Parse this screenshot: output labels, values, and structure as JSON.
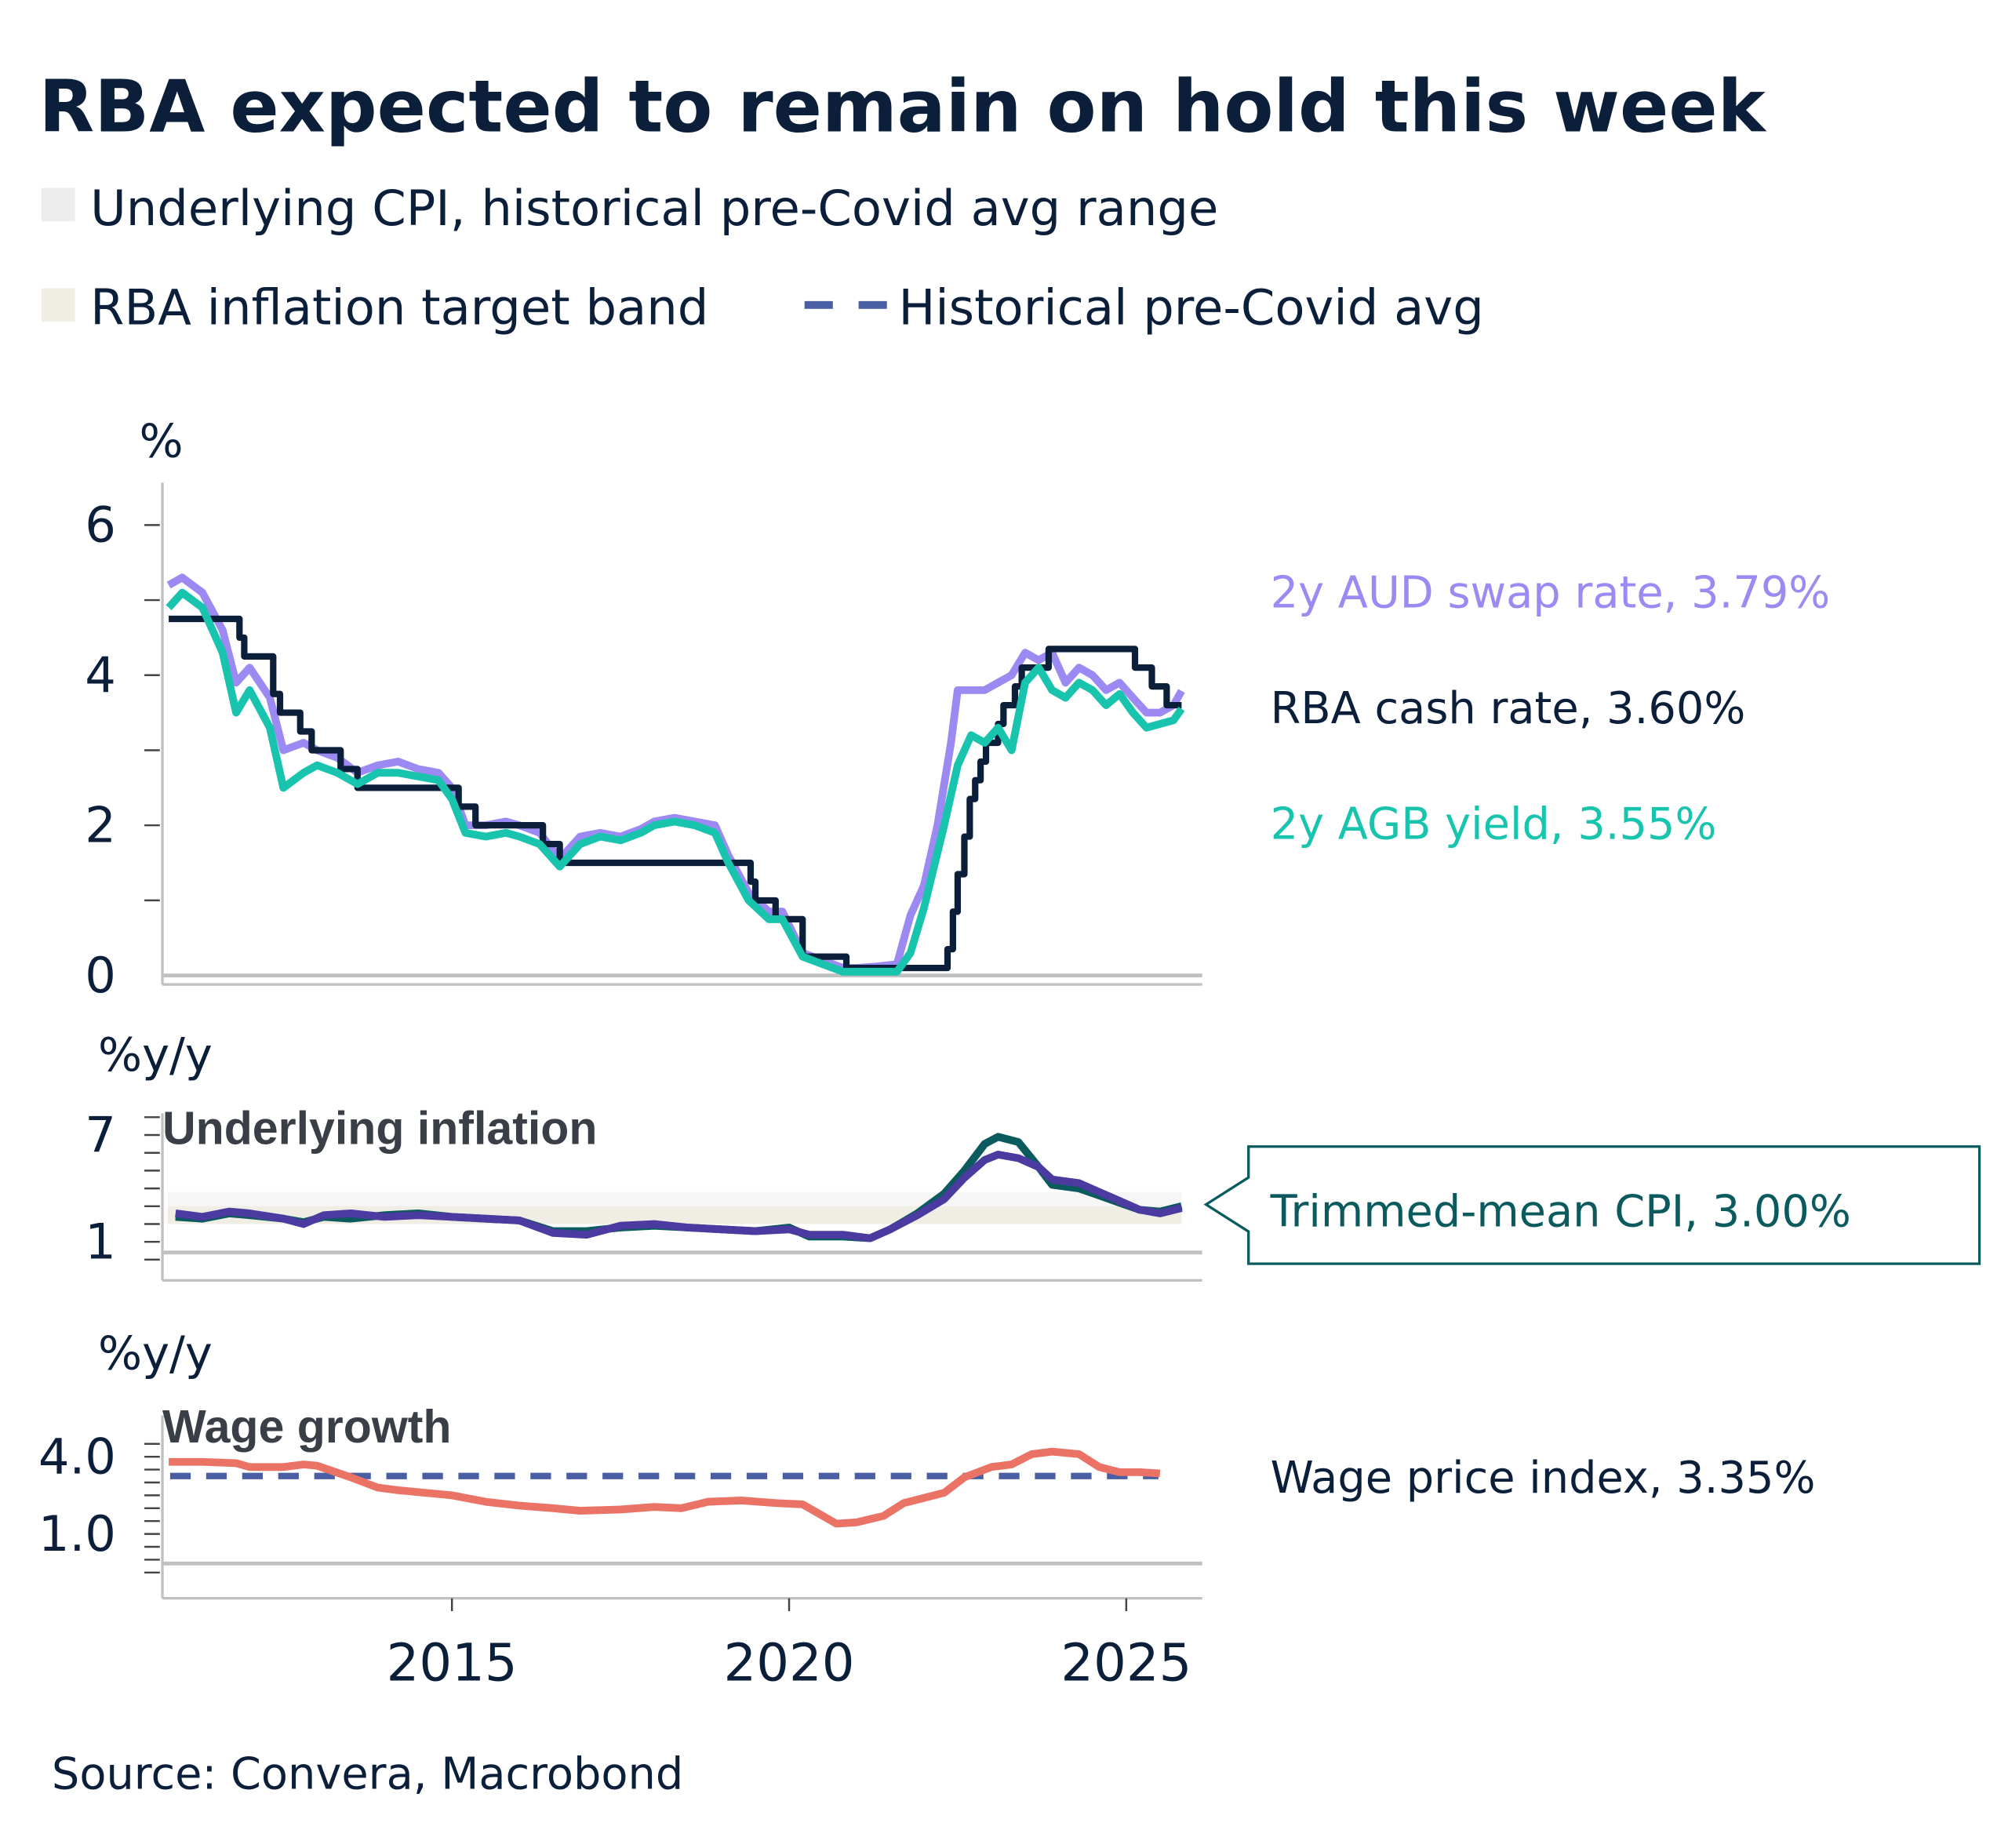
{
  "title": "RBA expected to remain on hold this week",
  "legend": [
    {
      "label": "Underlying CPI, historical pre-Covid avg range",
      "color": "#ececec",
      "kind": "box"
    },
    {
      "label": "RBA inflation target band",
      "color": "#efede4",
      "kind": "box"
    },
    {
      "label": "Historical pre-Covid avg",
      "color": "#4a5fa3",
      "kind": "dash"
    }
  ],
  "source": "Source: Convera, Macrobond",
  "colors": {
    "swap": "#9c8af2",
    "cash": "#0b1f3a",
    "agb": "#18c4ad",
    "tm": "#0b5a5e",
    "inf2": "#4b3aa0",
    "wpi": "#ea7366",
    "avg": "#4a5fa3",
    "axis": "#c0c0c0"
  },
  "chart_data": [
    {
      "type": "line",
      "ylabel": "%",
      "ylim": [
        0,
        6.6
      ],
      "yticks": [
        "0",
        "2",
        "4",
        "6"
      ],
      "xticks": [
        "2015",
        "2020",
        "2025"
      ],
      "series": [
        {
          "name": "2y AUD swap rate, 3.79%",
          "key": "swap",
          "x": [
            2010.8,
            2011.0,
            2011.3,
            2011.6,
            2011.8,
            2012.0,
            2012.3,
            2012.5,
            2012.8,
            2013.0,
            2013.3,
            2013.6,
            2013.9,
            2014.2,
            2014.5,
            2014.8,
            2015.0,
            2015.2,
            2015.5,
            2015.8,
            2016.0,
            2016.3,
            2016.6,
            2016.9,
            2017.2,
            2017.5,
            2017.8,
            2018.0,
            2018.3,
            2018.6,
            2018.9,
            2019.1,
            2019.4,
            2019.7,
            2019.9,
            2020.2,
            2020.5,
            2020.8,
            2021.0,
            2021.3,
            2021.6,
            2021.8,
            2022.0,
            2022.2,
            2022.4,
            2022.5,
            2022.7,
            2022.9,
            2023.1,
            2023.3,
            2023.5,
            2023.7,
            2023.9,
            2024.1,
            2024.3,
            2024.5,
            2024.7,
            2024.9,
            2025.1,
            2025.3,
            2025.5,
            2025.7,
            2025.82
          ],
          "y": [
            5.2,
            5.3,
            5.1,
            4.6,
            3.9,
            4.1,
            3.7,
            3.0,
            3.1,
            3.0,
            2.9,
            2.7,
            2.8,
            2.85,
            2.75,
            2.7,
            2.5,
            2.0,
            2.0,
            2.05,
            2.0,
            1.9,
            1.55,
            1.85,
            1.9,
            1.85,
            1.95,
            2.05,
            2.1,
            2.05,
            2.0,
            1.6,
            1.1,
            0.85,
            0.85,
            0.3,
            0.2,
            0.1,
            0.1,
            0.12,
            0.15,
            0.8,
            1.2,
            2.0,
            3.1,
            3.8,
            3.8,
            3.8,
            3.9,
            4.0,
            4.3,
            4.2,
            4.3,
            3.9,
            4.1,
            4.0,
            3.8,
            3.9,
            3.7,
            3.5,
            3.5,
            3.6,
            3.79
          ]
        },
        {
          "name": "RBA cash rate, 3.60%",
          "key": "cash",
          "step": true,
          "x": [
            2010.8,
            2011.85,
            2011.92,
            2012.35,
            2012.45,
            2012.75,
            2012.92,
            2013.35,
            2013.6,
            2015.1,
            2015.35,
            2016.35,
            2016.6,
            2019.43,
            2019.5,
            2019.8,
            2020.2,
            2020.85,
            2022.35,
            2022.43,
            2022.5,
            2022.6,
            2022.68,
            2022.76,
            2022.84,
            2022.92,
            2023.1,
            2023.18,
            2023.35,
            2023.45,
            2023.85,
            2025.13,
            2025.38,
            2025.6,
            2025.82
          ],
          "y": [
            4.75,
            4.5,
            4.25,
            3.75,
            3.5,
            3.25,
            3.0,
            2.75,
            2.5,
            2.25,
            2.0,
            1.75,
            1.5,
            1.25,
            1.0,
            0.75,
            0.25,
            0.1,
            0.35,
            0.85,
            1.35,
            1.85,
            2.35,
            2.6,
            2.85,
            3.1,
            3.35,
            3.6,
            3.85,
            4.1,
            4.35,
            4.1,
            3.85,
            3.6,
            3.6
          ]
        },
        {
          "name": "2y AGB yield, 3.55%",
          "key": "agb",
          "x": [
            2010.8,
            2011.0,
            2011.3,
            2011.6,
            2011.8,
            2012.0,
            2012.3,
            2012.5,
            2012.8,
            2013.0,
            2013.3,
            2013.6,
            2013.9,
            2014.2,
            2014.5,
            2014.8,
            2015.0,
            2015.2,
            2015.5,
            2015.8,
            2016.0,
            2016.3,
            2016.6,
            2016.9,
            2017.2,
            2017.5,
            2017.8,
            2018.0,
            2018.3,
            2018.6,
            2018.9,
            2019.1,
            2019.4,
            2019.7,
            2019.9,
            2020.2,
            2020.5,
            2020.8,
            2021.0,
            2021.3,
            2021.6,
            2021.8,
            2022.0,
            2022.3,
            2022.5,
            2022.7,
            2022.9,
            2023.1,
            2023.3,
            2023.5,
            2023.7,
            2023.9,
            2024.1,
            2024.3,
            2024.5,
            2024.7,
            2024.9,
            2025.1,
            2025.3,
            2025.5,
            2025.7,
            2025.82
          ],
          "y": [
            4.9,
            5.1,
            4.9,
            4.3,
            3.5,
            3.8,
            3.3,
            2.5,
            2.7,
            2.8,
            2.7,
            2.55,
            2.7,
            2.7,
            2.65,
            2.6,
            2.35,
            1.9,
            1.85,
            1.9,
            1.85,
            1.75,
            1.45,
            1.75,
            1.85,
            1.8,
            1.9,
            2.0,
            2.05,
            2.0,
            1.9,
            1.5,
            1.0,
            0.75,
            0.75,
            0.25,
            0.15,
            0.05,
            0.05,
            0.05,
            0.05,
            0.3,
            0.9,
            2.0,
            2.8,
            3.2,
            3.1,
            3.3,
            3.0,
            3.9,
            4.1,
            3.8,
            3.7,
            3.9,
            3.8,
            3.6,
            3.75,
            3.5,
            3.3,
            3.35,
            3.4,
            3.55
          ]
        }
      ]
    },
    {
      "type": "line",
      "ylabel": "%y/y",
      "subtitle": "Underlying inflation",
      "ylim": [
        -1,
        8
      ],
      "yticks": [
        "1",
        "7"
      ],
      "target_band": [
        2,
        3
      ],
      "historical_range": [
        2,
        3.8
      ],
      "series": [
        {
          "name": "Trimmed-mean CPI, 3.00%",
          "key": "tm",
          "x": [
            2010.9,
            2011.3,
            2011.7,
            2012.0,
            2012.5,
            2012.8,
            2013.1,
            2013.5,
            2014.0,
            2014.5,
            2015.0,
            2015.5,
            2016.0,
            2016.5,
            2017.0,
            2017.5,
            2018.0,
            2018.5,
            2019.0,
            2019.5,
            2020.0,
            2020.3,
            2020.8,
            2021.2,
            2021.5,
            2021.9,
            2022.3,
            2022.6,
            2022.9,
            2023.1,
            2023.4,
            2023.7,
            2023.9,
            2024.3,
            2024.6,
            2024.9,
            2025.2,
            2025.5,
            2025.82
          ],
          "y": [
            2.4,
            2.3,
            2.6,
            2.5,
            2.3,
            2.1,
            2.4,
            2.3,
            2.5,
            2.6,
            2.4,
            2.3,
            2.2,
            1.6,
            1.6,
            1.8,
            1.9,
            1.8,
            1.7,
            1.6,
            1.8,
            1.3,
            1.3,
            1.2,
            1.7,
            2.6,
            3.7,
            5.0,
            6.5,
            6.9,
            6.6,
            5.2,
            4.2,
            4.0,
            3.6,
            3.2,
            2.8,
            2.7,
            3.0
          ]
        },
        {
          "key": "inf2",
          "x": [
            2010.9,
            2011.3,
            2011.7,
            2012.0,
            2012.5,
            2012.8,
            2013.1,
            2013.5,
            2014.0,
            2014.5,
            2015.0,
            2015.5,
            2016.0,
            2016.5,
            2017.0,
            2017.5,
            2018.0,
            2018.5,
            2019.0,
            2019.5,
            2020.0,
            2020.3,
            2020.8,
            2021.2,
            2021.5,
            2021.9,
            2022.3,
            2022.6,
            2022.9,
            2023.1,
            2023.4,
            2023.7,
            2023.9,
            2024.3,
            2024.6,
            2024.9,
            2025.2,
            2025.5,
            2025.82
          ],
          "y": [
            2.6,
            2.4,
            2.7,
            2.6,
            2.3,
            2.0,
            2.5,
            2.6,
            2.4,
            2.5,
            2.4,
            2.3,
            2.2,
            1.5,
            1.4,
            1.9,
            2.0,
            1.8,
            1.7,
            1.6,
            1.7,
            1.4,
            1.4,
            1.2,
            1.7,
            2.5,
            3.4,
            4.6,
            5.6,
            5.9,
            5.7,
            5.2,
            4.5,
            4.3,
            3.8,
            3.3,
            2.8,
            2.6,
            2.9
          ]
        }
      ]
    },
    {
      "type": "line",
      "ylabel": "%y/y",
      "subtitle": "Wage growth",
      "ylim": [
        -0.5,
        4.5
      ],
      "yticks": [
        "1.0",
        "4.0"
      ],
      "historical_avg": 3.25,
      "series": [
        {
          "name": "Wage price index, 3.35%",
          "key": "wpi",
          "x": [
            2010.8,
            2011.3,
            2011.8,
            2012.0,
            2012.5,
            2012.8,
            2013.0,
            2013.5,
            2013.9,
            2014.2,
            2014.6,
            2015.0,
            2015.5,
            2016.0,
            2016.5,
            2016.9,
            2017.5,
            2018.0,
            2018.4,
            2018.8,
            2019.3,
            2019.8,
            2020.2,
            2020.7,
            2021.0,
            2021.4,
            2021.7,
            2022.0,
            2022.3,
            2022.6,
            2023.0,
            2023.3,
            2023.6,
            2023.9,
            2024.3,
            2024.6,
            2024.9,
            2025.2,
            2025.5
          ],
          "y": [
            3.8,
            3.8,
            3.75,
            3.6,
            3.6,
            3.7,
            3.65,
            3.2,
            2.8,
            2.7,
            2.6,
            2.5,
            2.25,
            2.1,
            2.0,
            1.9,
            1.95,
            2.05,
            2.0,
            2.25,
            2.3,
            2.2,
            2.15,
            1.4,
            1.45,
            1.7,
            2.2,
            2.4,
            2.6,
            3.2,
            3.6,
            3.7,
            4.1,
            4.2,
            4.1,
            3.6,
            3.4,
            3.4,
            3.35
          ]
        }
      ]
    }
  ]
}
